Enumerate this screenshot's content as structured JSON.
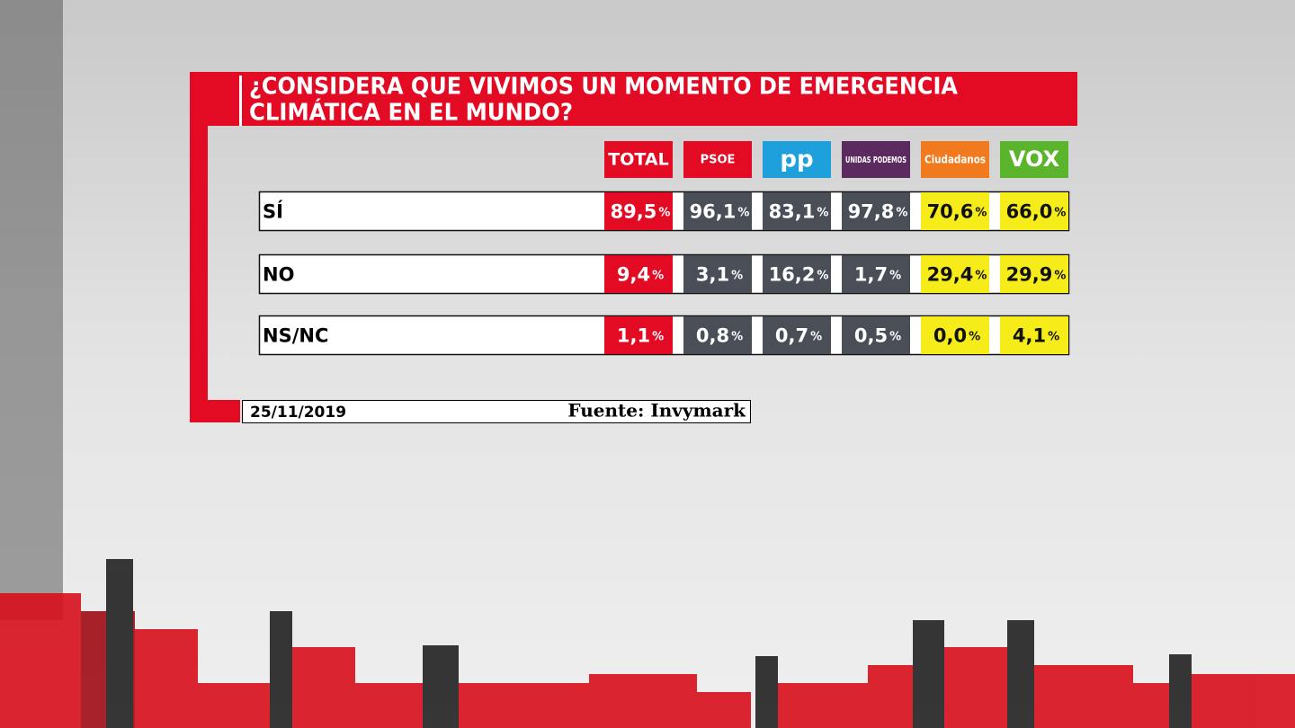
{
  "header": {
    "title_lines": [
      "¿CONSIDERA QUE VIVIMOS UN MOMENTO DE EMERGENCIA",
      "CLIMÁTICA EN EL MUNDO?"
    ]
  },
  "table": {
    "columns": [
      "TOTAL",
      "PSOE",
      "pp",
      "UNIDAS PODEMOS",
      "Ciudadanos",
      "VOX"
    ],
    "unit": "%",
    "rows": [
      {
        "label": "SÍ",
        "cells": [
          "89,5",
          "96,1",
          "83,1",
          "97,8",
          "70,6",
          "66,0"
        ]
      },
      {
        "label": "NO",
        "cells": [
          "9,4",
          "3,1",
          "16,2",
          "1,7",
          "29,4",
          "29,9"
        ]
      },
      {
        "label": "NS/NC",
        "cells": [
          "1,1",
          "0,8",
          "0,7",
          "0,5",
          "0,0",
          "4,1"
        ]
      }
    ]
  },
  "footer": {
    "date": "25/11/2019",
    "source": "Fuente: Invymark"
  }
}
